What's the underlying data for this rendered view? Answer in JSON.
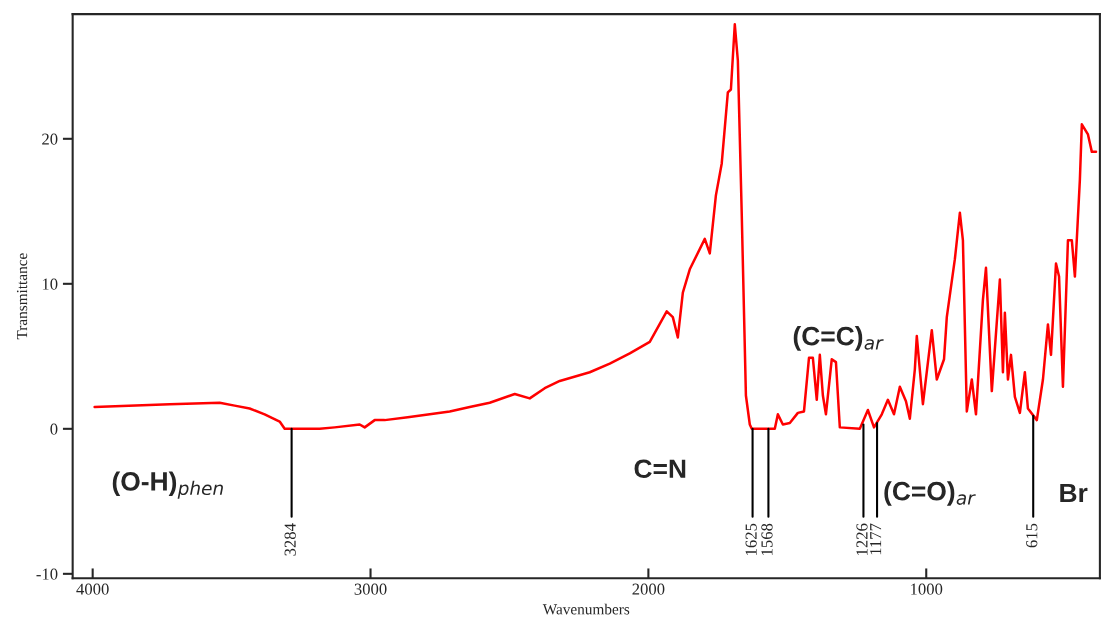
{
  "chart_data": {
    "type": "line",
    "xlabel": "Wavenumbers",
    "ylabel": "Transmittance",
    "xlim": [
      4072,
      375
    ],
    "ylim": [
      -10.3,
      28.6
    ],
    "xticks": [
      4000,
      3000,
      2000,
      1000
    ],
    "yticks": [
      -10,
      0,
      10,
      20
    ],
    "grid": false,
    "legend": false,
    "marker": "none",
    "line_style": "solid",
    "series": [
      {
        "color": "#ff0000",
        "x": [
          3993,
          3723,
          3543,
          3489,
          3435,
          3381,
          3327,
          3309,
          3183,
          3129,
          3039,
          3021,
          2985,
          2949,
          2866,
          2787,
          2715,
          2643,
          2571,
          2481,
          2427,
          2373,
          2319,
          2211,
          2139,
          2067,
          1995,
          1934,
          1912,
          1894,
          1876,
          1851,
          1797,
          1779,
          1757,
          1736,
          1714,
          1703,
          1689,
          1678,
          1664,
          1649,
          1635,
          1628,
          1545,
          1534,
          1516,
          1491,
          1462,
          1440,
          1422,
          1408,
          1394,
          1383,
          1372,
          1361,
          1340,
          1325,
          1311,
          1239,
          1210,
          1188,
          1160,
          1138,
          1116,
          1095,
          1073,
          1059,
          1041,
          1034,
          1012,
          980,
          962,
          936,
          926,
          897,
          879,
          868,
          854,
          836,
          821,
          796,
          785,
          764,
          735,
          724,
          717,
          706,
          695,
          681,
          663,
          645,
          634,
          602,
          580,
          562,
          551,
          533,
          522,
          508,
          490,
          476,
          465,
          447,
          440,
          418,
          404,
          389
        ],
        "values": [
          1.5,
          1.7,
          1.8,
          1.6,
          1.4,
          1.0,
          0.5,
          0,
          0,
          0.1,
          0.3,
          0.1,
          0.6,
          0.6,
          0.8,
          1.0,
          1.2,
          1.5,
          1.8,
          2.4,
          2.1,
          2.8,
          3.3,
          3.9,
          4.5,
          5.2,
          6.0,
          8.1,
          7.7,
          6.3,
          9.4,
          11.0,
          13.1,
          12.1,
          16.1,
          18.3,
          23.2,
          23.4,
          27.9,
          25.4,
          14.8,
          2.3,
          0.3,
          0,
          0,
          1.0,
          0.3,
          0.4,
          1.1,
          1.2,
          4.9,
          4.9,
          2.0,
          5.1,
          2.3,
          1.0,
          4.8,
          4.6,
          0.1,
          0,
          1.3,
          0.1,
          1.0,
          2.0,
          1.0,
          2.9,
          1.9,
          0.7,
          4.1,
          6.4,
          1.7,
          6.8,
          3.4,
          4.8,
          7.7,
          11.7,
          14.9,
          13.0,
          1.2,
          3.4,
          1.0,
          8.9,
          11.1,
          2.6,
          10.3,
          3.9,
          8.0,
          3.4,
          5.1,
          2.2,
          1.1,
          3.9,
          1.4,
          0.6,
          3.4,
          7.2,
          5.1,
          11.4,
          10.5,
          2.9,
          13.0,
          13.0,
          10.5,
          17.2,
          21.0,
          20.3,
          19.1,
          19.1
        ]
      }
    ],
    "annotations": [
      {
        "text": "3284",
        "x": 3284,
        "y": 0
      },
      {
        "text": "1625",
        "x": 1625,
        "y": 0
      },
      {
        "text": "1568",
        "x": 1568,
        "y": 0
      },
      {
        "text": "1226",
        "x": 1226,
        "y": 0.3
      },
      {
        "text": "1177",
        "x": 1177,
        "y": 0.4
      },
      {
        "text": "615",
        "x": 615,
        "y": 0.9
      },
      "(O-H)$_{phen}$",
      "C=N",
      "(C=C)$_{ar}$",
      "(C=O)$_{ar}$",
      "Br"
    ]
  }
}
